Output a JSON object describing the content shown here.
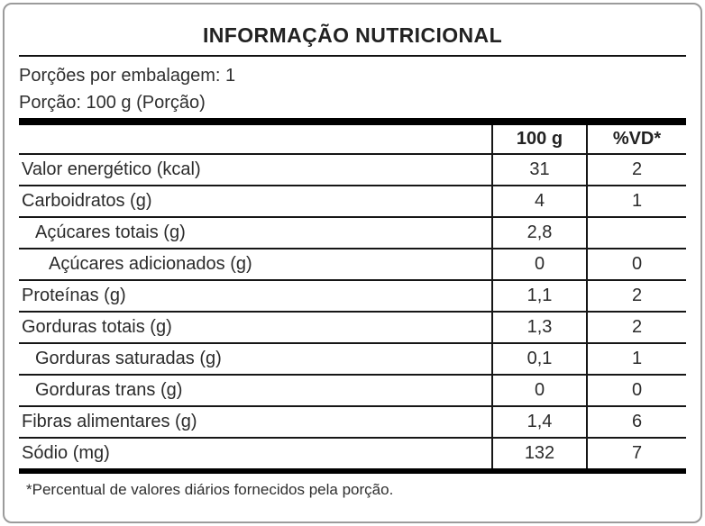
{
  "label": {
    "title": "INFORMAÇÃO NUTRICIONAL",
    "servings_per_package": "Porções por embalagem: 1",
    "portion": "Porção: 100 g (Porção)",
    "footnote": "*Percentual de valores diários fornecidos pela porção."
  },
  "table": {
    "columns": [
      "100 g",
      "%VD*"
    ],
    "rows": [
      {
        "label": "Valor energético (kcal)",
        "amount": "31",
        "vd": "2",
        "indent": 0
      },
      {
        "label": "Carboidratos (g)",
        "amount": "4",
        "vd": "1",
        "indent": 0
      },
      {
        "label": "Açúcares totais (g)",
        "amount": "2,8",
        "vd": "",
        "indent": 1
      },
      {
        "label": "Açúcares adicionados (g)",
        "amount": "0",
        "vd": "0",
        "indent": 2
      },
      {
        "label": "Proteínas (g)",
        "amount": "1,1",
        "vd": "2",
        "indent": 0
      },
      {
        "label": "Gorduras totais (g)",
        "amount": "1,3",
        "vd": "2",
        "indent": 0
      },
      {
        "label": "Gorduras saturadas (g)",
        "amount": "0,1",
        "vd": "1",
        "indent": 1
      },
      {
        "label": "Gorduras trans (g)",
        "amount": "0",
        "vd": "0",
        "indent": 1
      },
      {
        "label": "Fibras alimentares (g)",
        "amount": "1,4",
        "vd": "6",
        "indent": 0
      },
      {
        "label": "Sódio (mg)",
        "amount": "132",
        "vd": "7",
        "indent": 0
      }
    ]
  },
  "colors": {
    "text": "#2b2b2b",
    "rule": "#111111",
    "card_border": "#9b9b9b",
    "background": "#ffffff"
  }
}
